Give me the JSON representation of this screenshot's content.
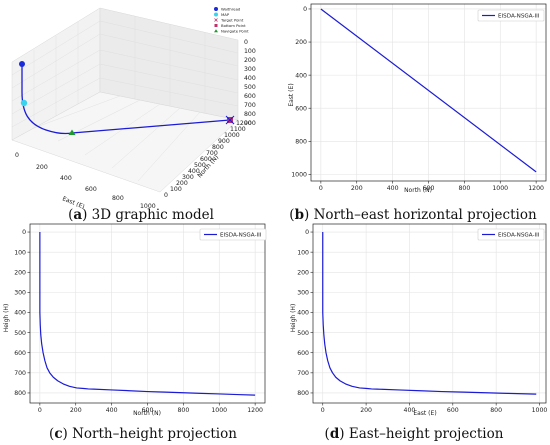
{
  "chart_data": [
    {
      "type": "line3d",
      "caption": {
        "letter": "a",
        "text": "3D graphic model"
      },
      "xlabel": "East (E)",
      "ylabel": "North (N)",
      "zlabel": "",
      "xticks": [
        "0",
        "200",
        "400",
        "600",
        "800",
        "1000"
      ],
      "yticks": [
        "0",
        "100",
        "200",
        "300",
        "400",
        "500",
        "600",
        "700",
        "800",
        "900",
        "1000",
        "1100",
        "1200"
      ],
      "zticks": [
        "0",
        "100",
        "200",
        "300",
        "400",
        "500",
        "600",
        "700",
        "800",
        "900"
      ],
      "legend": [
        "Waithread",
        "MAP",
        "Target Point",
        "Bottom Point",
        "Navigate Point"
      ],
      "colors": {
        "line": "#1b1bd6",
        "start": "#1a2adb",
        "map": "#3ad3ee",
        "target": "#c0306a",
        "bottom": "#c0306a",
        "navigate": "#1c9a2c"
      }
    },
    {
      "type": "line",
      "caption": {
        "letter": "b",
        "text": "North–east horizontal projection"
      },
      "xlabel": "North (N)",
      "ylabel": "East (E)",
      "xticks": [
        0,
        200,
        400,
        600,
        800,
        1000,
        1200
      ],
      "yticks": [
        0,
        200,
        400,
        600,
        800,
        1000
      ],
      "xlim": [
        -55,
        1255
      ],
      "ylim": [
        1040,
        -30
      ],
      "series": [
        {
          "name": "EISDA-NSGA-III",
          "x": [
            0,
            1200
          ],
          "y": [
            0,
            985
          ]
        }
      ]
    },
    {
      "type": "line",
      "caption": {
        "letter": "c",
        "text": "North–height projection"
      },
      "xlabel": "North (N)",
      "ylabel": "Heigh (H)",
      "xticks": [
        0,
        200,
        400,
        600,
        800,
        1000,
        1200
      ],
      "yticks": [
        0,
        100,
        200,
        300,
        400,
        500,
        600,
        700,
        800
      ],
      "xlim": [
        -55,
        1255
      ],
      "ylim": [
        850,
        -40
      ],
      "series": [
        {
          "name": "EISDA-NSGA-III",
          "x": [
            0,
            0,
            2,
            5,
            10,
            18,
            28,
            40,
            55,
            75,
            100,
            130,
            165,
            205,
            245,
            270,
            300,
            400,
            500,
            600,
            700,
            800,
            900,
            1000,
            1100,
            1200
          ],
          "y": [
            0,
            400,
            460,
            510,
            555,
            600,
            640,
            675,
            700,
            722,
            740,
            755,
            767,
            775,
            778,
            780,
            781,
            785,
            789,
            793,
            796,
            799,
            802,
            805,
            808,
            811
          ]
        }
      ]
    },
    {
      "type": "line",
      "caption": {
        "letter": "d",
        "text": "East–height projection"
      },
      "xlabel": "East (E)",
      "ylabel": "Heigh (H)",
      "xticks": [
        0,
        200,
        400,
        600,
        800,
        1000
      ],
      "yticks": [
        0,
        100,
        200,
        300,
        400,
        500,
        600,
        700,
        800
      ],
      "xlim": [
        -45,
        1030
      ],
      "ylim": [
        850,
        -40
      ],
      "series": [
        {
          "name": "EISDA-NSGA-III",
          "x": [
            0,
            0,
            2,
            5,
            9,
            15,
            23,
            33,
            45,
            60,
            80,
            105,
            135,
            170,
            205,
            225,
            250,
            350,
            450,
            550,
            650,
            750,
            850,
            985
          ],
          "y": [
            0,
            400,
            460,
            510,
            555,
            600,
            640,
            675,
            700,
            722,
            740,
            755,
            767,
            775,
            778,
            780,
            781,
            785,
            789,
            793,
            796,
            799,
            802,
            806
          ]
        }
      ]
    }
  ]
}
